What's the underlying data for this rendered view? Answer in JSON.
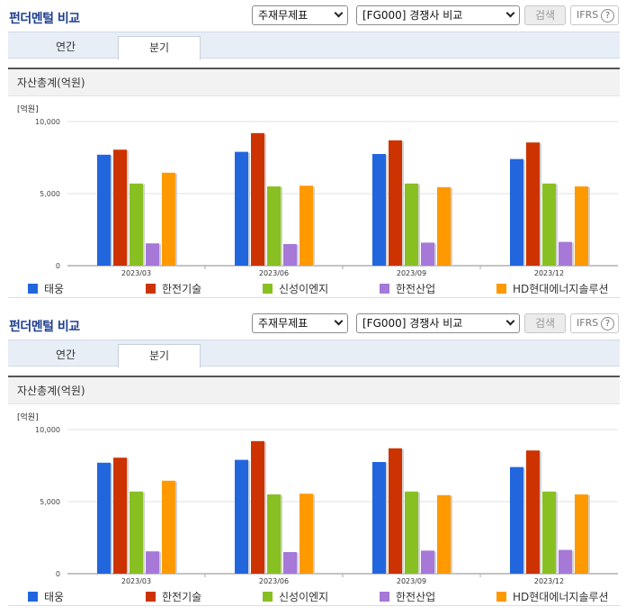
{
  "panels": [
    {
      "title": "펀더멘털 비교",
      "select_type": "주재무제표",
      "select_group": "[FG000] 경쟁사 비교",
      "search_label": "검색",
      "ifrs_label": "IFRS",
      "help_glyph": "?",
      "tabs": [
        {
          "label": "연간",
          "active": false
        },
        {
          "label": "분기",
          "active": true
        }
      ],
      "card_title": "자산총계(억원)"
    },
    {
      "title": "펀더멘털 비교",
      "select_type": "주재무제표",
      "select_group": "[FG000] 경쟁사 비교",
      "search_label": "검색",
      "ifrs_label": "IFRS",
      "help_glyph": "?",
      "tabs": [
        {
          "label": "연간",
          "active": false
        },
        {
          "label": "분기",
          "active": true
        }
      ],
      "card_title": "자산총계(억원)"
    }
  ],
  "chart_data": [
    {
      "type": "bar",
      "unit_label": "[억원]",
      "categories": [
        "2023/03",
        "2023/06",
        "2023/09",
        "2023/12"
      ],
      "ylim": [
        0,
        10000
      ],
      "yticks": [
        0,
        5000,
        10000
      ],
      "ytick_labels": [
        "0",
        "5,000",
        "10,000"
      ],
      "grid": true,
      "legend_position": "bottom",
      "series": [
        {
          "name": "태웅",
          "color": "#2266dd",
          "values": [
            7700,
            7900,
            7750,
            7400
          ]
        },
        {
          "name": "한전기술",
          "color": "#cc3300",
          "values": [
            8050,
            9200,
            8700,
            8550
          ]
        },
        {
          "name": "신성이엔지",
          "color": "#88c022",
          "values": [
            5700,
            5500,
            5700,
            5700
          ]
        },
        {
          "name": "한전산업",
          "color": "#a678d8",
          "values": [
            1550,
            1500,
            1600,
            1650
          ]
        },
        {
          "name": "HD현대에너지솔루션",
          "color": "#ff9900",
          "values": [
            6450,
            5550,
            5450,
            5500
          ]
        }
      ]
    },
    {
      "type": "bar",
      "unit_label": "[억원]",
      "categories": [
        "2023/03",
        "2023/06",
        "2023/09",
        "2023/12"
      ],
      "ylim": [
        0,
        10000
      ],
      "yticks": [
        0,
        5000,
        10000
      ],
      "ytick_labels": [
        "0",
        "5,000",
        "10,000"
      ],
      "grid": true,
      "legend_position": "bottom",
      "series": [
        {
          "name": "태웅",
          "color": "#2266dd",
          "values": [
            7700,
            7900,
            7750,
            7400
          ]
        },
        {
          "name": "한전기술",
          "color": "#cc3300",
          "values": [
            8050,
            9200,
            8700,
            8550
          ]
        },
        {
          "name": "신성이엔지",
          "color": "#88c022",
          "values": [
            5700,
            5500,
            5700,
            5700
          ]
        },
        {
          "name": "한전산업",
          "color": "#a678d8",
          "values": [
            1550,
            1500,
            1600,
            1650
          ]
        },
        {
          "name": "HD현대에너지솔루션",
          "color": "#ff9900",
          "values": [
            6450,
            5550,
            5450,
            5500
          ]
        }
      ]
    }
  ]
}
